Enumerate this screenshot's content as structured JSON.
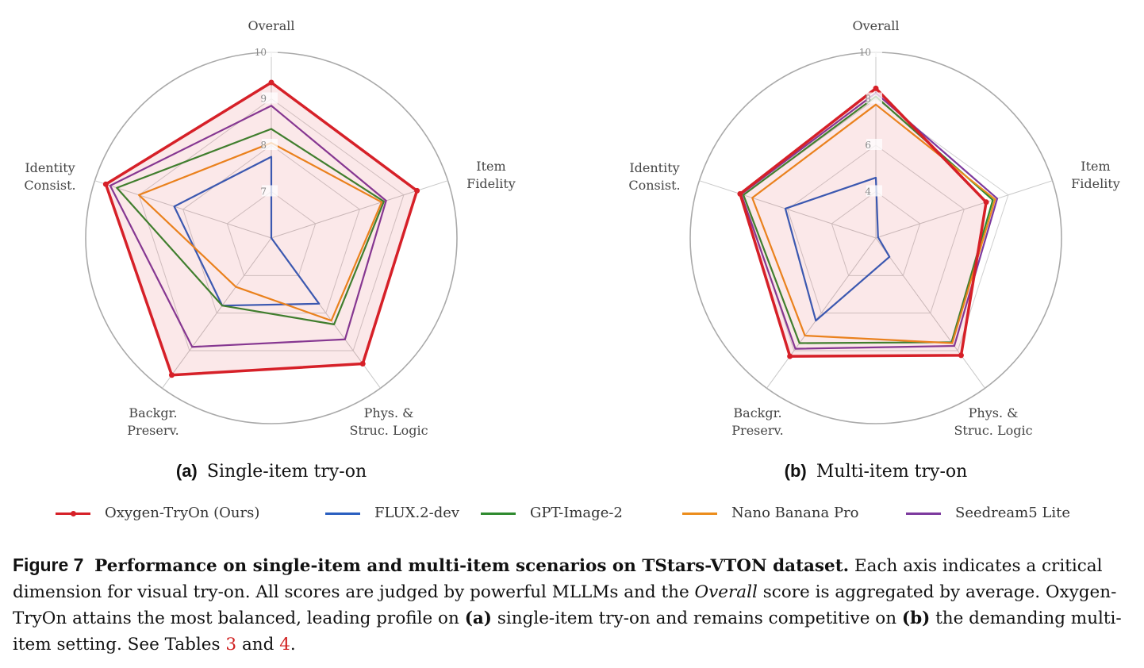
{
  "chart_data": [
    {
      "type": "radar",
      "subcaption_key": "(a)",
      "subcaption_text": "Single-item try-on",
      "axes": [
        "Overall",
        "Item\nFidelity",
        "Phys. &\nStruc. Logic",
        "Backgr.\nPreserv.",
        "Identity\nConsist."
      ],
      "range": [
        6,
        10
      ],
      "ticks": [
        7,
        8,
        9,
        10
      ],
      "grid": true,
      "series": [
        {
          "name": "Oxygen-TryOn (Ours)",
          "color": "#d62028",
          "values": [
            9.35,
            9.3,
            9.35,
            9.65,
            9.75
          ]
        },
        {
          "name": "FLUX.2-dev",
          "color": "#2a5fc0",
          "values": [
            7.75,
            6.0,
            7.75,
            7.8,
            8.2
          ]
        },
        {
          "name": "GPT-Image-2",
          "color": "#2f8a2f",
          "values": [
            8.35,
            8.55,
            8.3,
            7.8,
            9.5
          ]
        },
        {
          "name": "Nano Banana Pro",
          "color": "#ec8d1c",
          "values": [
            8.05,
            8.5,
            8.2,
            7.3,
            9.0
          ]
        },
        {
          "name": "Seedream5 Lite",
          "color": "#7d3a9e",
          "values": [
            8.85,
            8.6,
            8.7,
            8.9,
            9.65
          ]
        }
      ]
    },
    {
      "type": "radar",
      "subcaption_key": "(b)",
      "subcaption_text": "Multi-item try-on",
      "axes": [
        "Overall",
        "Item\nFidelity",
        "Phys. &\nStruc. Logic",
        "Backgr.\nPreserv.",
        "Identity\nConsist."
      ],
      "range": [
        2,
        10
      ],
      "ticks": [
        4,
        6,
        8,
        10
      ],
      "grid": true,
      "series": [
        {
          "name": "Oxygen-TryOn (Ours)",
          "color": "#d62028",
          "values": [
            8.45,
            7.0,
            8.25,
            8.3,
            8.15
          ]
        },
        {
          "name": "FLUX.2-dev",
          "color": "#2a5fc0",
          "values": [
            4.6,
            2.1,
            3.0,
            6.4,
            6.1
          ]
        },
        {
          "name": "GPT-Image-2",
          "color": "#2f8a2f",
          "values": [
            8.1,
            7.3,
            7.55,
            7.6,
            8.0
          ]
        },
        {
          "name": "Nano Banana Pro",
          "color": "#ec8d1c",
          "values": [
            7.75,
            7.4,
            7.6,
            7.2,
            7.6
          ]
        },
        {
          "name": "Seedream5 Lite",
          "color": "#7d3a9e",
          "values": [
            8.25,
            7.5,
            7.75,
            7.9,
            8.1
          ]
        }
      ]
    }
  ],
  "legend": {
    "placement": "bottom",
    "items": [
      {
        "label": "Oxygen-TryOn (Ours)",
        "color": "#d62028",
        "marker": true
      },
      {
        "label": "FLUX.2-dev",
        "color": "#2a5fc0",
        "marker": false
      },
      {
        "label": "GPT-Image-2",
        "color": "#2f8a2f",
        "marker": false
      },
      {
        "label": "Nano Banana Pro",
        "color": "#ec8d1c",
        "marker": false
      },
      {
        "label": "Seedream5 Lite",
        "color": "#7d3a9e",
        "marker": false
      }
    ]
  },
  "caption": {
    "label": "Figure 7",
    "title": "Performance on single-item and multi-item scenarios on TStars-VTON dataset.",
    "text_1": "Each axis indicates a critical dimension for visual try-on. All scores are judged by powerful MLLMs and the",
    "overall_word": "Overall",
    "text_2": "score is aggregated by average. Oxygen-TryOn attains the most balanced, leading profile on",
    "ref_a": "(a)",
    "text_3": "single-item try-on and remains competitive on",
    "ref_b": "(b)",
    "text_4": "the demanding multi-item setting. See Tables",
    "table_ref_1": "3",
    "text_5": "and",
    "table_ref_2": "4",
    "text_6": "."
  }
}
